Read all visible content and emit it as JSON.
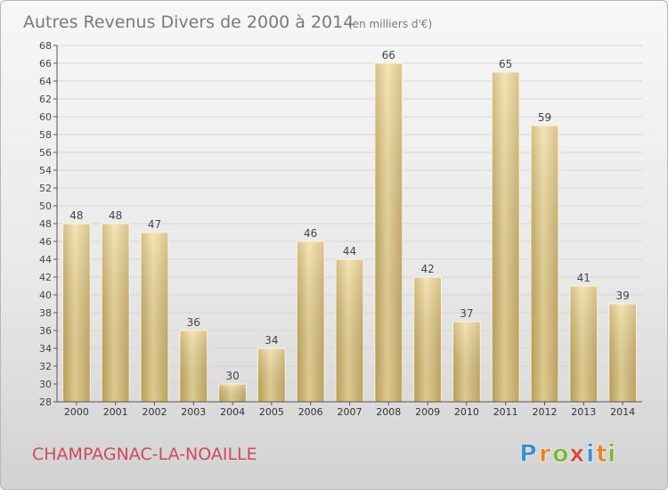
{
  "chart_data": {
    "type": "bar",
    "title": "Autres Revenus Divers de 2000 à 2014",
    "subtitle": "(en milliers d'€)",
    "categories": [
      "2000",
      "2001",
      "2002",
      "2003",
      "2004",
      "2005",
      "2006",
      "2007",
      "2008",
      "2009",
      "2010",
      "2011",
      "2012",
      "2013",
      "2014"
    ],
    "values": [
      48,
      48,
      47,
      36,
      30,
      34,
      46,
      44,
      66,
      42,
      37,
      65,
      59,
      41,
      39
    ],
    "ylim": [
      28,
      68
    ],
    "yticks": [
      28,
      30,
      32,
      34,
      36,
      38,
      40,
      42,
      44,
      46,
      48,
      50,
      52,
      54,
      56,
      58,
      60,
      62,
      64,
      66,
      68
    ],
    "xlabel": "",
    "ylabel": "",
    "grid": true,
    "bar_color": "#e8cf8a"
  },
  "footer": {
    "commune": "CHAMPAGNAC-LA-NOAILLE",
    "logo_letters": [
      "P",
      "r",
      "o",
      "x",
      "i",
      "t",
      "i"
    ],
    "logo_colors": [
      "#3b8fd0",
      "#e8832a",
      "#7bb83a",
      "#d84a3a",
      "#3b8fd0",
      "#e8832a",
      "#7bb83a"
    ]
  }
}
